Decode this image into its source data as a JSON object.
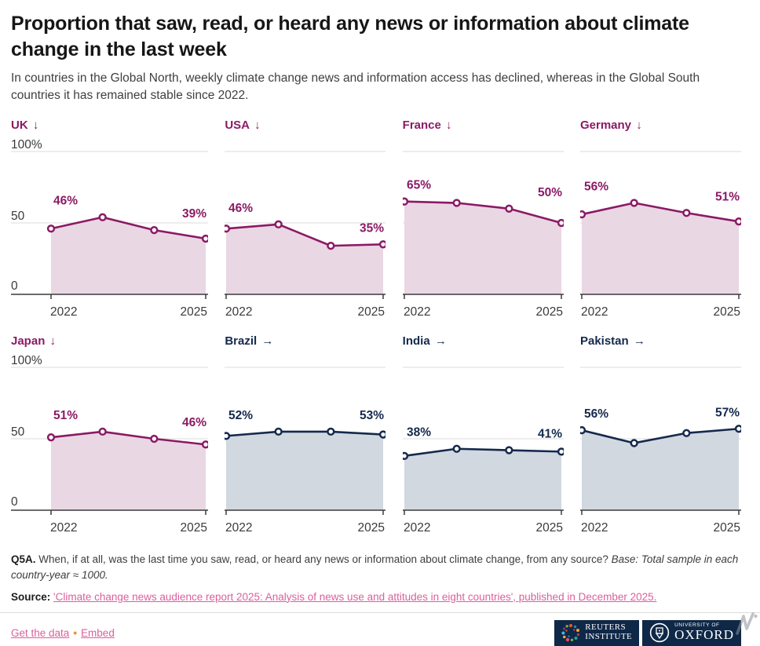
{
  "title": "Proportion that saw, read, or heard any news or information about climate change in the last week",
  "subtitle": "In countries in the Global North, weekly climate change news and information access has declined, whereas in the Global South countries it has remained stable since 2022.",
  "colors": {
    "link": "#DB5F9E",
    "bullet": "#EE8F2D",
    "logo_bg": "#0F2848",
    "north_line": "#8B1A65",
    "north_fill": "#E9D7E4",
    "south_line": "#15294D",
    "south_fill": "#D2D8E0",
    "grid": "#DBDBDB",
    "axis": "#3C3C3C",
    "tick_text": "#3A3A3A"
  },
  "chart_data": {
    "type": "area",
    "x": [
      2022,
      2023,
      2024,
      2025
    ],
    "xtick_labels": [
      "2022",
      "2025"
    ],
    "ytick_labels": [
      "100%",
      "50",
      "0"
    ],
    "ylim": [
      0,
      100
    ],
    "grid": true,
    "series": [
      {
        "name": "UK",
        "direction": "↓",
        "group": "global-north",
        "values": [
          46,
          54,
          45,
          39
        ],
        "first_label": "46%",
        "last_label": "39%"
      },
      {
        "name": "USA",
        "direction": "↓",
        "group": "global-north",
        "values": [
          46,
          49,
          34,
          35
        ],
        "first_label": "46%",
        "last_label": "35%"
      },
      {
        "name": "France",
        "direction": "↓",
        "group": "global-north",
        "values": [
          65,
          64,
          60,
          50
        ],
        "first_label": "65%",
        "last_label": "50%"
      },
      {
        "name": "Germany",
        "direction": "↓",
        "group": "global-north",
        "values": [
          56,
          64,
          57,
          51
        ],
        "first_label": "56%",
        "last_label": "51%"
      },
      {
        "name": "Japan",
        "direction": "↓",
        "group": "global-north",
        "values": [
          51,
          55,
          50,
          46
        ],
        "first_label": "51%",
        "last_label": "46%"
      },
      {
        "name": "Brazil",
        "direction": "→",
        "group": "global-south",
        "values": [
          52,
          55,
          55,
          53
        ],
        "first_label": "52%",
        "last_label": "53%"
      },
      {
        "name": "India",
        "direction": "→",
        "group": "global-south",
        "values": [
          38,
          43,
          42,
          41
        ],
        "first_label": "38%",
        "last_label": "41%"
      },
      {
        "name": "Pakistan",
        "direction": "→",
        "group": "global-south",
        "values": [
          56,
          47,
          54,
          57
        ],
        "first_label": "56%",
        "last_label": "57%"
      }
    ]
  },
  "footnote": {
    "label": "Q5A.",
    "text": " When, if at all, was the last time you saw, read, or heard any news or information about climate change, from any source? ",
    "base": "Base: Total sample in each country-year ≈ 1000."
  },
  "source": {
    "label": "Source: ",
    "link_text": "'Climate change news audience report 2025: Analysis of news use and attitudes in eight countries', published in December 2025."
  },
  "footer": {
    "get_data": "Get the data",
    "separator": "•",
    "embed": "Embed"
  },
  "logos": {
    "reuters_line1": "REUTERS",
    "reuters_line2": "INSTITUTE",
    "oxford_line1": "UNIVERSITY OF",
    "oxford_line2": "OXFORD"
  }
}
